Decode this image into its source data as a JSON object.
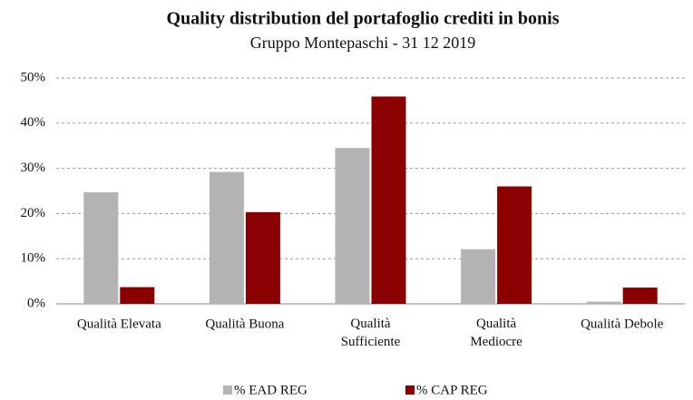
{
  "chart_data": {
    "type": "bar",
    "title": "Quality distribution del portafoglio crediti in bonis",
    "subtitle": "Gruppo Montepaschi - 31 12 2019",
    "categories": [
      "Qualità Elevata",
      "Qualità Buona",
      "Qualità\nSufficiente",
      "Qualità\nMediocre",
      "Qualità Debole"
    ],
    "series": [
      {
        "name": "% EAD REG",
        "color": "#b3b3b3",
        "values": [
          24.7,
          29.2,
          34.5,
          12.1,
          0.5
        ]
      },
      {
        "name": "% CAP REG",
        "color": "#8b0000",
        "values": [
          3.7,
          20.3,
          45.9,
          26.0,
          3.6
        ]
      }
    ],
    "ylim": [
      0,
      50
    ],
    "yticks": [
      {
        "value": 0,
        "label": "0%"
      },
      {
        "value": 10,
        "label": "10%"
      },
      {
        "value": 20,
        "label": "20%"
      },
      {
        "value": 30,
        "label": "30%"
      },
      {
        "value": 40,
        "label": "40%"
      },
      {
        "value": 50,
        "label": "50%"
      }
    ],
    "grid": true,
    "legend": "bottom"
  }
}
